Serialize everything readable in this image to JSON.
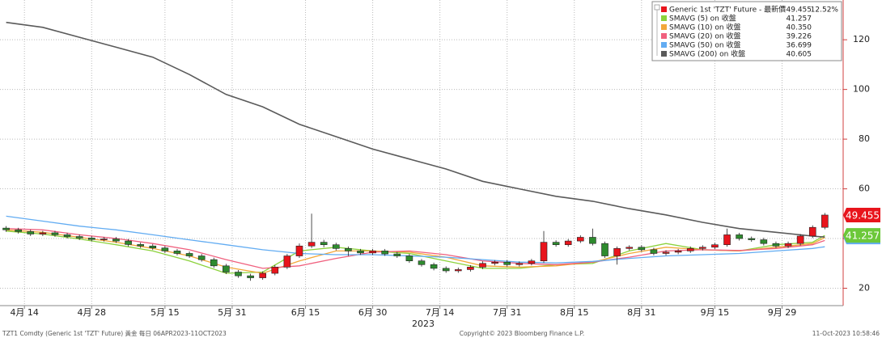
{
  "chart_data": {
    "type": "candlestick",
    "xlabel": "2023",
    "up_color": "#e8141c",
    "down_color": "#2e8b2e",
    "series_name": "Generic 1st 'TZT' Future - 最新價",
    "series_last": "49.455",
    "series_change": "12.52%",
    "x": [
      0,
      2,
      4,
      6,
      8,
      10,
      12,
      14,
      16,
      18,
      20,
      22,
      24,
      26,
      28,
      30,
      32,
      34,
      36,
      38,
      40,
      42,
      44,
      46,
      48,
      50,
      52,
      54,
      56,
      58,
      60,
      62,
      64,
      66,
      68,
      70,
      72,
      74,
      76,
      78,
      80,
      82,
      84,
      86,
      88,
      90,
      92,
      94,
      96,
      98,
      100,
      102,
      104,
      106,
      108,
      110,
      112,
      114,
      116,
      118,
      120,
      122,
      124,
      126,
      128,
      130,
      132,
      134
    ],
    "open": [
      44.2,
      43.5,
      42.8,
      41.8,
      42.3,
      41.5,
      40.8,
      40.2,
      39.6,
      39.8,
      39.0,
      37.6,
      37.0,
      36.2,
      35.0,
      34.0,
      33.0,
      31.5,
      29.0,
      26.5,
      25.0,
      24.2,
      26.0,
      28.5,
      33.0,
      37.0,
      38.5,
      37.5,
      36.0,
      35.0,
      34.2,
      35.0,
      33.8,
      33.0,
      31.0,
      29.5,
      28.0,
      27.0,
      27.5,
      28.5,
      30.0,
      30.5,
      29.5,
      30.0,
      31.0,
      38.5,
      37.5,
      39.0,
      40.5,
      38.0,
      33.0,
      36.0,
      36.5,
      35.5,
      34.0,
      34.5,
      35.0,
      36.0,
      36.5,
      37.5,
      41.5,
      40.0,
      39.5,
      38.0,
      37.0,
      38.0,
      41.0,
      44.5
    ],
    "high": [
      45.0,
      44.3,
      43.6,
      43.1,
      43.1,
      42.3,
      41.6,
      41.0,
      40.6,
      40.6,
      39.8,
      38.4,
      37.8,
      37.0,
      35.8,
      34.8,
      33.8,
      32.3,
      29.8,
      27.3,
      25.8,
      26.8,
      29.3,
      33.8,
      38.0,
      50.0,
      39.5,
      38.3,
      36.8,
      35.8,
      35.8,
      35.8,
      34.6,
      33.8,
      31.8,
      30.3,
      28.8,
      28.3,
      29.3,
      30.8,
      31.3,
      31.3,
      30.8,
      31.8,
      43.0,
      39.3,
      39.8,
      41.3,
      44.0,
      38.8,
      36.8,
      37.3,
      37.3,
      36.3,
      35.3,
      35.8,
      36.8,
      37.3,
      38.3,
      44.0,
      42.3,
      40.8,
      40.3,
      38.8,
      38.8,
      41.8,
      45.3,
      50.3
    ],
    "low": [
      42.7,
      42.0,
      41.0,
      41.0,
      40.7,
      40.0,
      39.4,
      38.8,
      38.8,
      38.2,
      36.8,
      36.2,
      35.4,
      34.2,
      33.2,
      32.2,
      30.7,
      28.2,
      25.7,
      24.2,
      23.0,
      23.4,
      25.2,
      27.7,
      32.2,
      36.2,
      36.5,
      35.2,
      33.0,
      33.4,
      33.4,
      33.0,
      32.2,
      30.2,
      28.7,
      27.2,
      26.2,
      26.2,
      26.7,
      27.7,
      29.2,
      28.7,
      28.7,
      29.2,
      30.2,
      36.7,
      36.7,
      38.2,
      37.2,
      32.2,
      29.5,
      35.2,
      34.7,
      33.2,
      33.2,
      33.7,
      34.2,
      35.2,
      35.7,
      36.7,
      39.2,
      38.7,
      37.2,
      36.2,
      36.2,
      37.2,
      40.2,
      43.7
    ],
    "close": [
      43.5,
      42.8,
      41.8,
      42.3,
      41.5,
      40.8,
      40.2,
      39.6,
      39.8,
      39.0,
      37.6,
      37.0,
      36.2,
      35.0,
      34.0,
      33.0,
      31.5,
      29.0,
      26.5,
      25.0,
      24.2,
      26.0,
      28.5,
      33.0,
      37.0,
      38.5,
      37.5,
      36.0,
      35.0,
      34.2,
      35.0,
      33.8,
      33.0,
      31.0,
      29.5,
      28.0,
      27.0,
      27.5,
      28.5,
      30.0,
      30.5,
      29.5,
      30.0,
      31.0,
      38.5,
      37.5,
      39.0,
      40.5,
      38.0,
      33.0,
      36.0,
      36.5,
      35.5,
      34.0,
      34.5,
      35.0,
      36.0,
      36.5,
      37.5,
      41.5,
      40.0,
      39.5,
      38.0,
      37.0,
      38.0,
      41.0,
      44.5,
      49.455
    ],
    "overlays": [
      {
        "name": "SMAVG (5)  on 收盤",
        "legend_value": "41.257",
        "color": "#8cd23c",
        "x": [
          0,
          6,
          12,
          18,
          24,
          30,
          36,
          42,
          48,
          54,
          60,
          66,
          72,
          78,
          84,
          90,
          96,
          102,
          108,
          114,
          120,
          126,
          132,
          134
        ],
        "values": [
          43,
          41.8,
          39.8,
          37.5,
          35,
          31,
          26,
          26.5,
          35,
          36.5,
          35,
          34,
          31,
          28,
          28,
          29.5,
          30,
          35,
          38,
          35.5,
          35,
          37.5,
          38.5,
          41.257
        ]
      },
      {
        "name": "SMAVG (10)  on 收盤",
        "legend_value": "40.350",
        "color": "#f2a83a",
        "x": [
          0,
          6,
          12,
          18,
          24,
          30,
          36,
          42,
          48,
          54,
          60,
          66,
          72,
          78,
          84,
          90,
          96,
          102,
          108,
          114,
          120,
          126,
          132,
          134
        ],
        "values": [
          43.5,
          42.5,
          40.5,
          38.5,
          36,
          33,
          28.5,
          26,
          31,
          35,
          35,
          34.5,
          32.5,
          29,
          28.5,
          29,
          30.5,
          34,
          36.5,
          35.5,
          35,
          36.5,
          38,
          40.35
        ]
      },
      {
        "name": "SMAVG (20)  on 收盤",
        "legend_value": "39.226",
        "color": "#f0607e",
        "x": [
          0,
          6,
          12,
          18,
          24,
          30,
          36,
          42,
          48,
          54,
          60,
          66,
          72,
          78,
          84,
          90,
          96,
          102,
          108,
          114,
          120,
          126,
          132,
          134
        ],
        "values": [
          44,
          43.5,
          41.5,
          40,
          38,
          35.5,
          31.5,
          28,
          29,
          32,
          34.5,
          35,
          33.5,
          31,
          30,
          29.5,
          30.5,
          32.5,
          35,
          35.5,
          35.2,
          36,
          37.5,
          39.226
        ]
      },
      {
        "name": "SMAVG (50)  on 收盤",
        "legend_value": "36.699",
        "color": "#62acf2",
        "x": [
          0,
          6,
          12,
          18,
          24,
          30,
          36,
          42,
          48,
          54,
          60,
          66,
          72,
          78,
          84,
          90,
          96,
          102,
          108,
          114,
          120,
          126,
          132,
          134
        ],
        "values": [
          49,
          47,
          45,
          43.5,
          41.5,
          39.5,
          37.5,
          35.5,
          34,
          33.5,
          33.5,
          33,
          32.5,
          31.5,
          30.5,
          30.2,
          30.8,
          32,
          33,
          33.5,
          34,
          35,
          36,
          36.699
        ]
      },
      {
        "name": "SMAVG (200)  on 收盤",
        "legend_value": "40.605",
        "color": "#5a5a5a",
        "x": [
          0,
          6,
          12,
          18,
          24,
          30,
          36,
          42,
          48,
          54,
          60,
          66,
          72,
          78,
          84,
          90,
          96,
          102,
          108,
          114,
          120,
          126,
          132,
          134
        ],
        "values": [
          127,
          125,
          121,
          117,
          113,
          106,
          98,
          93,
          86,
          81,
          76,
          72,
          68,
          63,
          60,
          57,
          55,
          52,
          49.5,
          46.5,
          44,
          42.5,
          41,
          40.605
        ]
      }
    ],
    "xlim": [
      -1,
      137
    ],
    "xticks": [
      {
        "value": 3,
        "label": "4月 14"
      },
      {
        "value": 14,
        "label": "4月 28"
      },
      {
        "value": 26,
        "label": "5月 15"
      },
      {
        "value": 37,
        "label": "5月 31"
      },
      {
        "value": 49,
        "label": "6月 15"
      },
      {
        "value": 60,
        "label": "6月 30"
      },
      {
        "value": 71,
        "label": "7月 14"
      },
      {
        "value": 82,
        "label": "7月 31"
      },
      {
        "value": 93,
        "label": "8月 15"
      },
      {
        "value": 104,
        "label": "8月 31"
      },
      {
        "value": 116,
        "label": "9月 15"
      },
      {
        "value": 127,
        "label": "9月 29"
      }
    ],
    "ylim": [
      13,
      136
    ],
    "yticks": [
      20,
      40,
      60,
      80,
      100,
      120
    ],
    "grid": true,
    "tags": [
      {
        "series": 4,
        "color": "#62acf2"
      },
      {
        "series": 0,
        "color": "#6cc83a"
      }
    ]
  },
  "footer": {
    "left": "TZT1 Comdty (Generic 1st 'TZT' Future) 黃金  每日 06APR2023-11OCT2023",
    "center": "Copyright© 2023 Bloomberg Finance L.P.",
    "right": "11-Oct-2023 10:58:46"
  }
}
